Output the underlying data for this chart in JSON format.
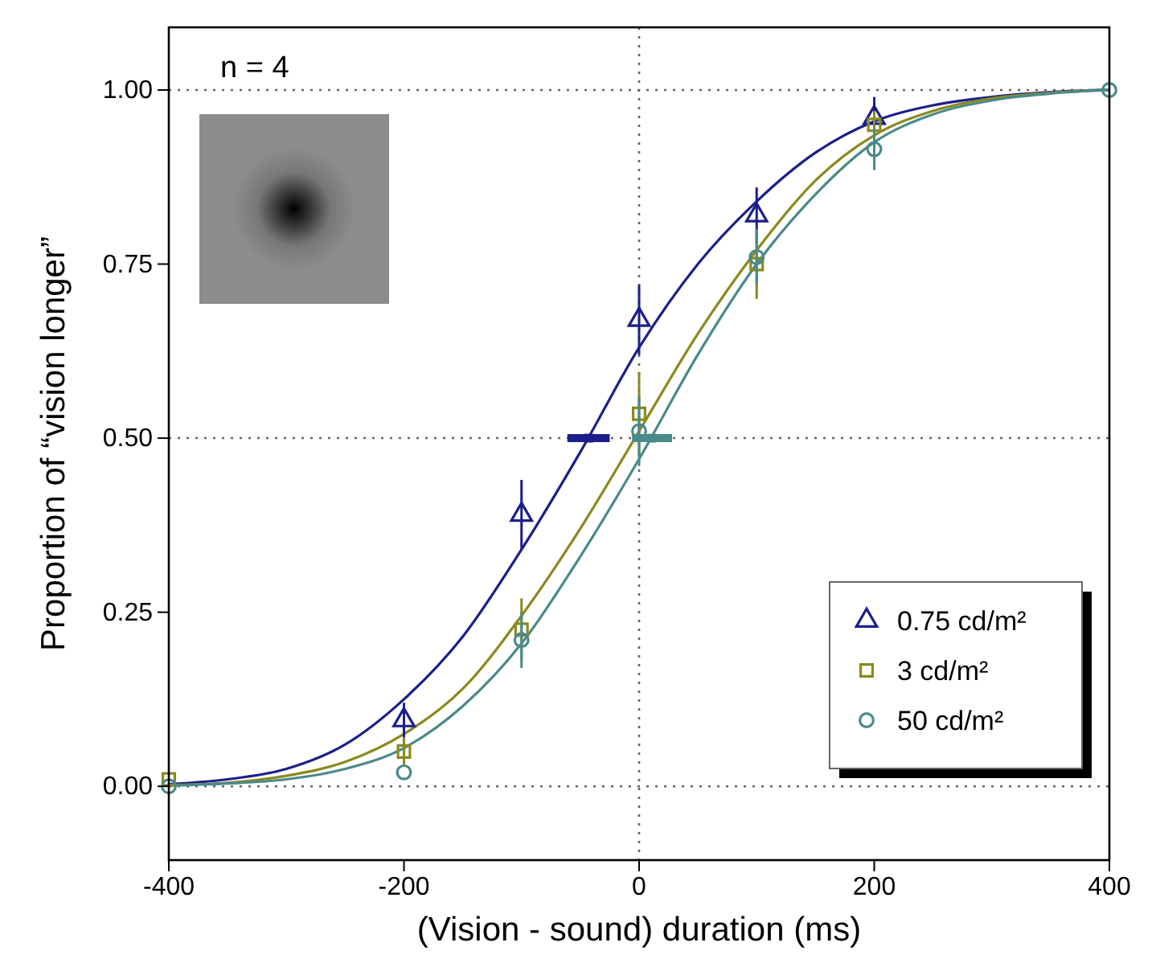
{
  "chart_data": {
    "type": "scatter",
    "xlabel": "(Vision - sound) duration (ms)",
    "ylabel": "Proportion of “vision longer”",
    "xlim": [
      -400,
      400
    ],
    "xticks": [
      -400,
      -200,
      0,
      200,
      400
    ],
    "ylim": [
      -0.106,
      1.09
    ],
    "yticks": [
      {
        "value": 0,
        "label": "0.00"
      },
      {
        "value": 0.25,
        "label": "0.25"
      },
      {
        "value": 0.5,
        "label": "0.50"
      },
      {
        "value": 0.75,
        "label": "0.75"
      },
      {
        "value": 1,
        "label": "1.00"
      }
    ],
    "legend": "bottom right",
    "annotations": [
      "n = 4"
    ],
    "ref_lines": [
      {
        "axis": "y",
        "value": 0,
        "line_style": "dotted"
      },
      {
        "axis": "y",
        "value": 0.5,
        "line_style": "dotted"
      },
      {
        "axis": "y",
        "value": 1,
        "line_style": "dotted"
      },
      {
        "axis": "x",
        "value": 0,
        "line_style": "dotted"
      }
    ],
    "series": [
      {
        "type": "line",
        "color": "#1a1f8c",
        "x": [
          -400,
          -350,
          -300,
          -250,
          -200,
          -150,
          -100,
          -50,
          0,
          50,
          100,
          150,
          200,
          250,
          300,
          350,
          400
        ],
        "values": [
          0.003,
          0.01,
          0.025,
          0.06,
          0.125,
          0.215,
          0.34,
          0.48,
          0.63,
          0.75,
          0.84,
          0.91,
          0.955,
          0.978,
          0.99,
          0.997,
          1.0
        ]
      },
      {
        "type": "line",
        "color": "#8a8a1e",
        "x": [
          -400,
          -350,
          -300,
          -250,
          -200,
          -150,
          -100,
          -50,
          0,
          50,
          100,
          150,
          200,
          250,
          300,
          350,
          400
        ],
        "values": [
          0.002,
          0.005,
          0.015,
          0.035,
          0.075,
          0.14,
          0.245,
          0.37,
          0.51,
          0.65,
          0.77,
          0.87,
          0.935,
          0.97,
          0.988,
          0.996,
          1.0
        ]
      },
      {
        "type": "line",
        "color": "#4a8a8a",
        "x": [
          -400,
          -350,
          -300,
          -250,
          -200,
          -150,
          -100,
          -50,
          0,
          50,
          100,
          150,
          200,
          250,
          300,
          350,
          400
        ],
        "values": [
          0.001,
          0.004,
          0.01,
          0.025,
          0.055,
          0.115,
          0.205,
          0.33,
          0.47,
          0.62,
          0.75,
          0.85,
          0.925,
          0.965,
          0.985,
          0.995,
          1.0
        ]
      },
      {
        "name": "0.75 cd/m²",
        "color": "#1a1f8c",
        "marker": "triangle",
        "x": [
          -200,
          -100,
          0,
          100,
          200
        ],
        "values": [
          0.095,
          0.39,
          0.67,
          0.82,
          0.96
        ],
        "errors": [
          0.025,
          0.05,
          0.05,
          0.04,
          0.03
        ]
      },
      {
        "name": "3 cd/m²",
        "color": "#8a8a1e",
        "marker": "square",
        "x": [
          -400,
          -200,
          -100,
          0,
          100,
          200
        ],
        "values": [
          0.01,
          0.05,
          0.225,
          0.535,
          0.75,
          0.95
        ],
        "errors": [
          null,
          0.02,
          0.045,
          0.06,
          0.05,
          0.02
        ]
      },
      {
        "name": "50 cd/m²",
        "color": "#4a8a8a",
        "marker": "circle",
        "x": [
          -400,
          -200,
          -100,
          0,
          100,
          200,
          400
        ],
        "values": [
          0.0,
          0.02,
          0.21,
          0.51,
          0.76,
          0.915,
          1.0
        ],
        "errors": [
          null,
          null,
          0.04,
          0.05,
          0.04,
          0.03,
          null
        ]
      },
      {
        "type": "scatter",
        "color": "#1a1f8c",
        "marker": "square",
        "x": [
          -43
        ],
        "values": [
          0.5
        ],
        "xerrors": [
          [
            -61,
            -25
          ]
        ]
      },
      {
        "type": "scatter",
        "color": "#4a8a8a",
        "marker": "square",
        "x": [
          11
        ],
        "values": [
          0.5
        ],
        "xerrors": [
          [
            -6,
            28
          ]
        ]
      }
    ]
  }
}
